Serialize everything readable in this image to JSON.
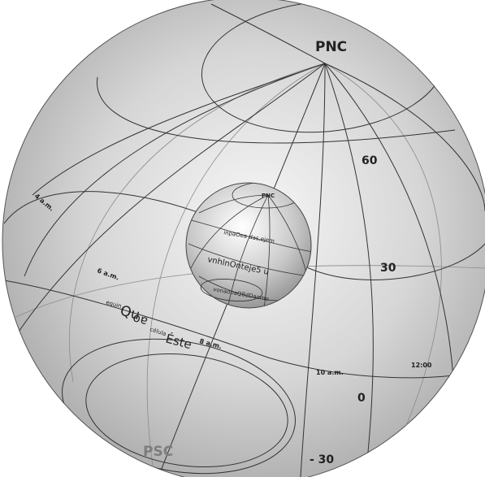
{
  "outer_sphere": {
    "pole_north": "PNC",
    "pole_south": "PSC",
    "latitudes": [
      "60",
      "30",
      "0",
      "- 30"
    ],
    "hours": [
      "4 a.m.",
      "6 a.m.",
      "8 a.m.",
      "10 a.m.",
      "12:00"
    ],
    "equator_text": {
      "w1": "equin",
      "w2": "Qu",
      "w3": "ao",
      "w4": "célula",
      "w5": "Éste"
    }
  },
  "inner_sphere": {
    "pole_north": "PNC",
    "curve_text_1": "inpaOea das,ejem",
    "curve_text_2": "vnhlnOnteje5 u",
    "curve_text_3": "vonaooaQ8dDaomo"
  },
  "colors": {
    "sphere_light": "#f4f4f4",
    "sphere_dark": "#9a9a9a",
    "line": "#333333",
    "south_label": "#7d7d7d"
  }
}
